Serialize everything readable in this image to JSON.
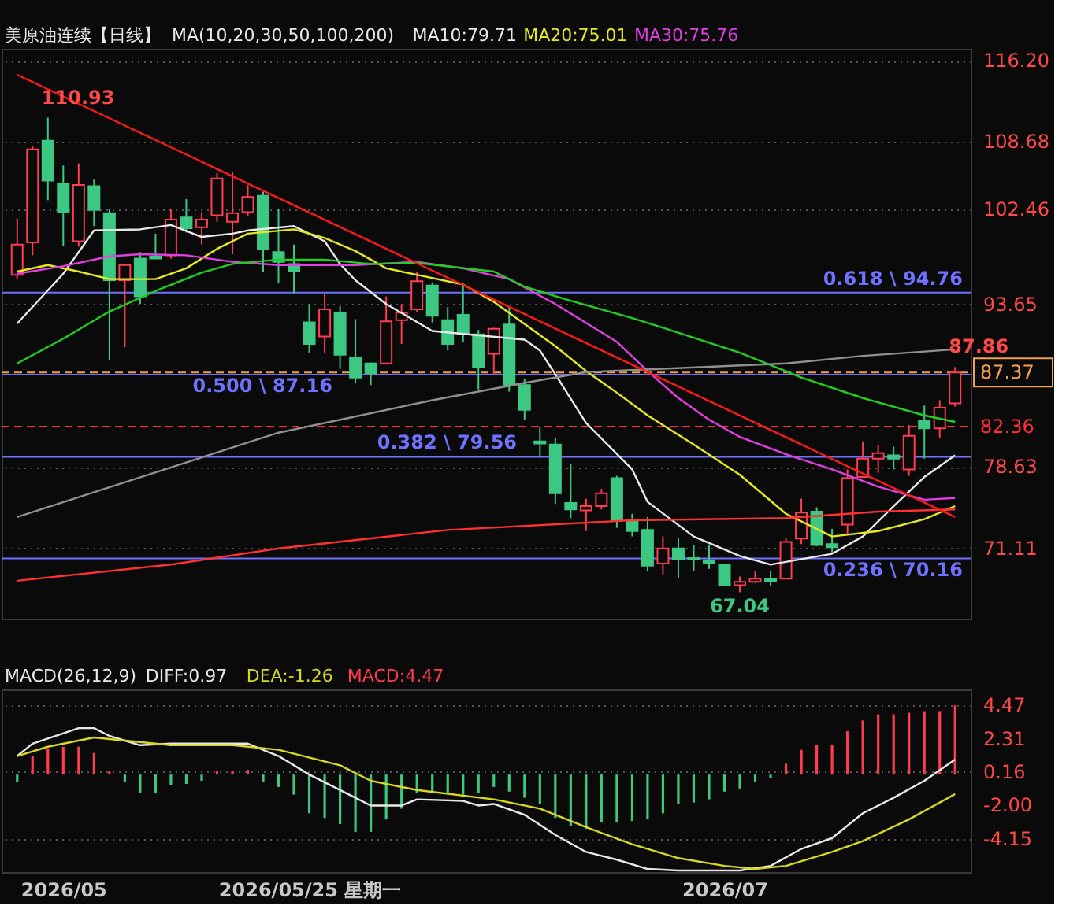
{
  "chart_data": [
    {
      "type": "candlestick",
      "title": "美原油连续【日线】",
      "legend_title": "MA(10,20,30,50,100,200)",
      "legend": "top",
      "grid": "y",
      "tick_labels": "y",
      "categories": [
        null,
        null,
        null,
        null,
        null,
        null,
        null,
        null,
        null,
        null,
        null,
        null,
        null,
        null,
        null,
        null,
        null,
        null,
        null,
        null,
        null,
        null,
        null,
        null,
        null,
        null,
        null,
        null,
        null,
        null,
        null,
        null,
        null,
        null,
        null,
        null,
        null,
        null,
        null,
        null,
        null,
        null,
        null,
        null,
        null,
        null,
        null,
        null,
        null,
        null,
        null,
        null,
        null,
        null,
        null,
        null,
        null,
        null,
        null,
        null,
        null,
        null
      ],
      "ohlc": [
        [
          96.4,
          101.6,
          96.0,
          99.2
        ],
        [
          99.4,
          108.3,
          98.2,
          108.0
        ],
        [
          108.8,
          110.93,
          103.3,
          105.1
        ],
        [
          104.8,
          106.5,
          99.1,
          102.2
        ],
        [
          99.5,
          106.7,
          99.0,
          104.7
        ],
        [
          104.6,
          105.2,
          100.9,
          102.4
        ],
        [
          102.1,
          102.5,
          88.5,
          95.9
        ],
        [
          95.9,
          97.3,
          89.7,
          97.3
        ],
        [
          97.9,
          98.5,
          93.7,
          94.4
        ],
        [
          98.1,
          100.2,
          97.9,
          97.9
        ],
        [
          98.2,
          102.5,
          97.9,
          101.5
        ],
        [
          101.7,
          103.4,
          100.3,
          100.7
        ],
        [
          100.8,
          102.2,
          99.2,
          101.5
        ],
        [
          101.9,
          105.8,
          101.3,
          105.3
        ],
        [
          101.3,
          105.9,
          98.3,
          102.1
        ],
        [
          102.2,
          104.7,
          101.8,
          103.6
        ],
        [
          103.7,
          104.1,
          96.7,
          98.8
        ],
        [
          98.5,
          102.5,
          95.6,
          97.6
        ],
        [
          97.4,
          99.2,
          94.7,
          96.7
        ],
        [
          92.0,
          93.7,
          89.2,
          90.0
        ],
        [
          90.7,
          94.6,
          89.2,
          93.2
        ],
        [
          92.9,
          93.5,
          87.7,
          89.0
        ],
        [
          88.7,
          92.3,
          86.4,
          86.9
        ],
        [
          88.2,
          88.3,
          86.2,
          87.3
        ],
        [
          88.2,
          94.4,
          88.2,
          92.1
        ],
        [
          92.2,
          93.7,
          90.0,
          92.9
        ],
        [
          93.2,
          96.7,
          93.0,
          95.8
        ],
        [
          95.4,
          95.7,
          92.0,
          92.6
        ],
        [
          92.2,
          93.4,
          89.4,
          90.0
        ],
        [
          92.7,
          95.4,
          90.2,
          90.9
        ],
        [
          90.9,
          91.3,
          85.8,
          87.9
        ],
        [
          89.1,
          91.5,
          87.2,
          91.4
        ],
        [
          91.8,
          93.5,
          85.6,
          86.2
        ],
        [
          86.2,
          86.8,
          83.0,
          83.9
        ],
        [
          81.0,
          82.3,
          79.5,
          80.8
        ],
        [
          80.7,
          81.3,
          75.2,
          76.2
        ],
        [
          75.3,
          78.9,
          73.9,
          74.7
        ],
        [
          74.6,
          75.7,
          72.7,
          75.0
        ],
        [
          75.0,
          76.6,
          74.7,
          76.2
        ],
        [
          77.6,
          77.8,
          73.0,
          73.7
        ],
        [
          73.7,
          74.3,
          72.2,
          72.7
        ],
        [
          72.8,
          74.0,
          69.0,
          69.5
        ],
        [
          69.7,
          72.2,
          68.7,
          71.1
        ],
        [
          71.1,
          72.1,
          68.3,
          70.1
        ],
        [
          70.2,
          71.4,
          69.0,
          70.1
        ],
        [
          70.0,
          71.4,
          69.2,
          69.7
        ],
        [
          69.6,
          69.6,
          67.7,
          67.7
        ],
        [
          67.7,
          68.5,
          67.04,
          68.0
        ],
        [
          68.0,
          69.0,
          67.9,
          68.3
        ],
        [
          68.3,
          69.0,
          67.6,
          68.1
        ],
        [
          68.3,
          72.1,
          68.3,
          71.7
        ],
        [
          72.0,
          75.7,
          71.5,
          74.4
        ],
        [
          74.5,
          74.9,
          71.3,
          71.4
        ],
        [
          71.5,
          72.9,
          70.6,
          71.2
        ],
        [
          73.3,
          78.4,
          72.4,
          77.6
        ],
        [
          77.7,
          81.0,
          77.7,
          79.4
        ],
        [
          79.4,
          80.7,
          78.1,
          79.9
        ],
        [
          79.7,
          80.5,
          78.4,
          79.4
        ],
        [
          78.4,
          82.5,
          77.8,
          81.5
        ],
        [
          82.9,
          84.3,
          79.4,
          82.2
        ],
        [
          82.2,
          84.8,
          81.3,
          84.1
        ],
        [
          84.5,
          87.86,
          84.2,
          87.37
        ]
      ],
      "series": [
        {
          "type": "line",
          "name": "MA10:79.71",
          "color": "#e8e8e8",
          "values": [
            91.9,
            null,
            null,
            96.5,
            null,
            100.5,
            null,
            null,
            100.6,
            null,
            101.0,
            null,
            99.9,
            null,
            100.2,
            100.5,
            null,
            null,
            100.9,
            null,
            99.5,
            97.4,
            95.9,
            null,
            93.7,
            null,
            null,
            91.2,
            null,
            null,
            90.8,
            null,
            null,
            90.4,
            89.4,
            87.2,
            null,
            82.7,
            null,
            null,
            78.4,
            75.4,
            null,
            null,
            72.2,
            null,
            null,
            70.4,
            null,
            69.6,
            null,
            70.1,
            null,
            70.6,
            null,
            72.2,
            null,
            75.0,
            null,
            77.7,
            null,
            79.71
          ]
        },
        {
          "type": "line",
          "name": "MA20:75.01",
          "color": "#e8e820",
          "values": [
            96.7,
            null,
            97.3,
            null,
            96.7,
            null,
            96.0,
            null,
            null,
            96.0,
            null,
            97.0,
            null,
            98.8,
            null,
            100.2,
            null,
            null,
            100.6,
            null,
            99.8,
            null,
            98.6,
            null,
            97.0,
            null,
            96.4,
            null,
            null,
            95.5,
            null,
            93.9,
            null,
            null,
            null,
            89.8,
            null,
            87.5,
            null,
            85.5,
            null,
            83.4,
            null,
            null,
            80.7,
            null,
            null,
            77.9,
            null,
            null,
            74.3,
            null,
            null,
            72.2,
            null,
            null,
            72.7,
            null,
            null,
            73.8,
            null,
            75.01
          ]
        },
        {
          "type": "line",
          "name": "MA30:75.76",
          "color": "#e040e0",
          "values": [
            96.5,
            null,
            null,
            97.2,
            null,
            null,
            98.1,
            null,
            98.3,
            null,
            null,
            98.2,
            null,
            null,
            97.6,
            null,
            null,
            97.3,
            null,
            null,
            97.3,
            null,
            97.3,
            null,
            null,
            null,
            97.6,
            null,
            null,
            97.0,
            null,
            null,
            96.0,
            null,
            null,
            93.7,
            null,
            null,
            null,
            90.2,
            null,
            87.5,
            null,
            85.0,
            null,
            83.0,
            null,
            81.4,
            null,
            null,
            79.8,
            null,
            null,
            78.4,
            null,
            null,
            76.8,
            null,
            null,
            75.6,
            null,
            75.76
          ]
        },
        {
          "type": "line",
          "color": "#20d020",
          "values": [
            88.2,
            null,
            null,
            90.5,
            null,
            null,
            93.0,
            null,
            null,
            94.9,
            null,
            null,
            96.6,
            null,
            97.4,
            null,
            null,
            97.8,
            null,
            null,
            97.8,
            null,
            null,
            97.4,
            null,
            null,
            97.5,
            null,
            null,
            null,
            null,
            96.7,
            null,
            95.3,
            null,
            null,
            94.0,
            null,
            null,
            null,
            92.4,
            null,
            91.5,
            null,
            null,
            null,
            null,
            89.2,
            null,
            null,
            null,
            86.9,
            null,
            null,
            null,
            85.0,
            null,
            null,
            null,
            83.4,
            null,
            82.8
          ]
        },
        {
          "type": "line",
          "color": "#ff3030",
          "values": [
            68.1,
            null,
            null,
            null,
            null,
            null,
            null,
            null,
            null,
            null,
            69.6,
            null,
            null,
            null,
            null,
            null,
            null,
            71.1,
            null,
            null,
            null,
            null,
            null,
            null,
            null,
            null,
            null,
            null,
            72.8,
            null,
            null,
            null,
            null,
            null,
            null,
            null,
            null,
            null,
            null,
            null,
            73.7,
            null,
            null,
            null,
            null,
            null,
            null,
            null,
            null,
            null,
            73.9,
            null,
            null,
            null,
            null,
            null,
            74.5,
            null,
            null,
            null,
            null,
            74.7
          ]
        },
        {
          "type": "line",
          "color": "#909090",
          "values": [
            74.0,
            null,
            null,
            null,
            null,
            null,
            null,
            null,
            null,
            null,
            null,
            null,
            null,
            null,
            null,
            null,
            null,
            81.8,
            null,
            null,
            null,
            null,
            null,
            null,
            null,
            null,
            null,
            84.8,
            null,
            null,
            null,
            null,
            null,
            86.4,
            null,
            null,
            null,
            87.4,
            null,
            null,
            null,
            null,
            null,
            null,
            null,
            null,
            null,
            null,
            null,
            null,
            88.2,
            null,
            null,
            null,
            null,
            88.9,
            null,
            null,
            null,
            null,
            null,
            89.5
          ]
        },
        {
          "type": "line",
          "color": "#ff1a1a",
          "values": [
            114.9,
            null,
            null,
            null,
            null,
            null,
            null,
            null,
            null,
            null,
            null,
            null,
            null,
            null,
            null,
            null,
            null,
            null,
            null,
            null,
            null,
            null,
            null,
            null,
            null,
            null,
            null,
            null,
            null,
            null,
            null,
            null,
            null,
            null,
            null,
            null,
            null,
            null,
            null,
            null,
            null,
            null,
            null,
            null,
            null,
            null,
            null,
            null,
            null,
            null,
            null,
            null,
            null,
            null,
            null,
            null,
            null,
            null,
            null,
            null,
            null,
            74.0
          ]
        }
      ],
      "ylim": [
        64.6,
        117.3
      ],
      "yticks": [
        {
          "value": 116.2,
          "label": "116.20"
        },
        108.68,
        102.46,
        93.65,
        78.63,
        71.11
      ],
      "ref_lines": [
        {
          "axis": "y",
          "value": 94.76,
          "label": "0.618 \\ 94.76",
          "color": "#6f72ff",
          "line_style": "solid"
        },
        {
          "axis": "y",
          "value": 87.16,
          "label": "0.500 \\ 87.16",
          "color": "#6f72ff",
          "line_style": "solid"
        },
        {
          "axis": "y",
          "value": 79.56,
          "label": "0.382 \\ 79.56",
          "color": "#6f72ff",
          "line_style": "solid"
        },
        {
          "axis": "y",
          "value": 70.16,
          "label": "0.236 \\ 70.16",
          "color": "#6f72ff",
          "line_style": "solid"
        },
        {
          "axis": "y",
          "value": 82.36,
          "label": "82.36",
          "color": "#ff3030",
          "line_style": "dashed"
        },
        {
          "axis": "y",
          "value": 87.37,
          "label": "87.37",
          "color": "#f0a050",
          "line_style": "dashed"
        }
      ],
      "annotations": [
        "110.93",
        "67.04",
        "87.86"
      ]
    },
    {
      "type": "bar",
      "legend_title": "MACD(26,12,9)",
      "legend": "top left",
      "grid": "y",
      "categories": [
        null,
        null,
        null,
        "2026/05",
        null,
        null,
        null,
        null,
        null,
        null,
        null,
        null,
        null,
        null,
        null,
        null,
        null,
        null,
        null,
        "2026/05/25 星期一",
        null,
        null,
        null,
        null,
        null,
        null,
        null,
        null,
        null,
        null,
        null,
        null,
        null,
        null,
        null,
        null,
        null,
        null,
        null,
        null,
        null,
        null,
        null,
        null,
        null,
        null,
        "2026/07",
        null,
        null,
        null,
        null,
        null,
        null,
        null,
        null,
        null,
        null,
        null,
        null,
        null,
        null,
        null
      ],
      "series": [
        {
          "type": "line",
          "name": "DIFF:0.97",
          "color": "#e8e8e8",
          "values": [
            1.2,
            2.0,
            null,
            null,
            3.0,
            3.0,
            2.5,
            null,
            1.9,
            null,
            2.0,
            null,
            null,
            2.0,
            null,
            2.0,
            null,
            1.2,
            null,
            0.0,
            null,
            null,
            -1.5,
            -2.0,
            null,
            -2.0,
            -1.6,
            null,
            null,
            -1.7,
            -2.0,
            -1.9,
            null,
            -2.6,
            null,
            -3.9,
            null,
            -5.0,
            null,
            -5.5,
            null,
            -6.1,
            null,
            -6.2,
            null,
            -6.2,
            null,
            -6.2,
            null,
            -5.9,
            null,
            -4.8,
            null,
            -4.1,
            null,
            -2.5,
            null,
            -1.5,
            null,
            -0.4,
            null,
            0.97
          ]
        },
        {
          "type": "line",
          "name": "DEA:-1.26",
          "color": "#d8d820",
          "values": [
            1.2,
            null,
            1.8,
            null,
            null,
            2.4,
            null,
            null,
            null,
            null,
            1.9,
            null,
            null,
            null,
            1.9,
            null,
            null,
            1.6,
            null,
            null,
            null,
            0.6,
            null,
            -0.4,
            null,
            null,
            -1.0,
            null,
            null,
            null,
            null,
            -1.6,
            null,
            null,
            -2.2,
            null,
            null,
            -3.4,
            null,
            null,
            -4.5,
            null,
            null,
            -5.4,
            null,
            null,
            -5.9,
            null,
            -6.1,
            null,
            -5.9,
            null,
            null,
            -5.0,
            null,
            -4.3,
            null,
            null,
            -2.9,
            null,
            null,
            -1.26
          ]
        },
        {
          "type": "bar",
          "name": "MACD:4.47",
          "color": "#ff3c50",
          "values": [
            -0.5,
            1.2,
            1.7,
            1.8,
            1.8,
            1.4,
            0.2,
            -0.5,
            -1.2,
            -1.2,
            -0.7,
            -0.6,
            -0.4,
            0.2,
            0.2,
            0.3,
            -0.5,
            -0.8,
            -1.3,
            -2.5,
            -2.8,
            -3.2,
            -3.7,
            -3.7,
            -2.9,
            -2.2,
            -1.2,
            -1.1,
            -1.2,
            -1.3,
            -1.2,
            -0.8,
            -1.1,
            -1.5,
            -1.9,
            -2.8,
            -3.3,
            -3.5,
            -3.1,
            -3.1,
            -3.0,
            -2.9,
            -2.5,
            -1.9,
            -1.8,
            -1.6,
            -1.1,
            -0.9,
            -0.5,
            -0.2,
            0.7,
            1.6,
            1.9,
            1.9,
            2.8,
            3.5,
            3.9,
            3.9,
            4.0,
            4.1,
            4.1,
            4.47
          ],
          "colors": [
            "#3cc882",
            "#ff3c50",
            "#ff3c50",
            "#ff3c50",
            "#ff3c50",
            "#ff3c50",
            "#ff3c50",
            "#3cc882",
            "#3cc882",
            "#3cc882",
            "#3cc882",
            "#3cc882",
            "#3cc882",
            "#ff3c50",
            "#ff3c50",
            "#ff3c50",
            "#3cc882",
            "#3cc882",
            "#3cc882",
            "#3cc882",
            "#3cc882",
            "#3cc882",
            "#3cc882",
            "#3cc882",
            "#3cc882",
            "#3cc882",
            "#3cc882",
            "#3cc882",
            "#3cc882",
            "#3cc882",
            "#3cc882",
            "#3cc882",
            "#3cc882",
            "#3cc882",
            "#3cc882",
            "#3cc882",
            "#3cc882",
            "#3cc882",
            "#3cc882",
            "#3cc882",
            "#3cc882",
            "#3cc882",
            "#3cc882",
            "#3cc882",
            "#3cc882",
            "#3cc882",
            "#3cc882",
            "#3cc882",
            "#3cc882",
            "#3cc882",
            "#ff3c50",
            "#ff3c50",
            "#ff3c50",
            "#ff3c50",
            "#ff3c50",
            "#ff3c50",
            "#ff3c50",
            "#ff3c50",
            "#ff3c50",
            "#ff3c50",
            "#ff3c50",
            "#ff3c50"
          ]
        }
      ],
      "ylim": [
        -6.3,
        5.5
      ],
      "yticks": [
        4.47,
        2.31,
        0.16,
        {
          "value": -2.0,
          "label": "-2.00"
        },
        -4.15
      ]
    }
  ]
}
